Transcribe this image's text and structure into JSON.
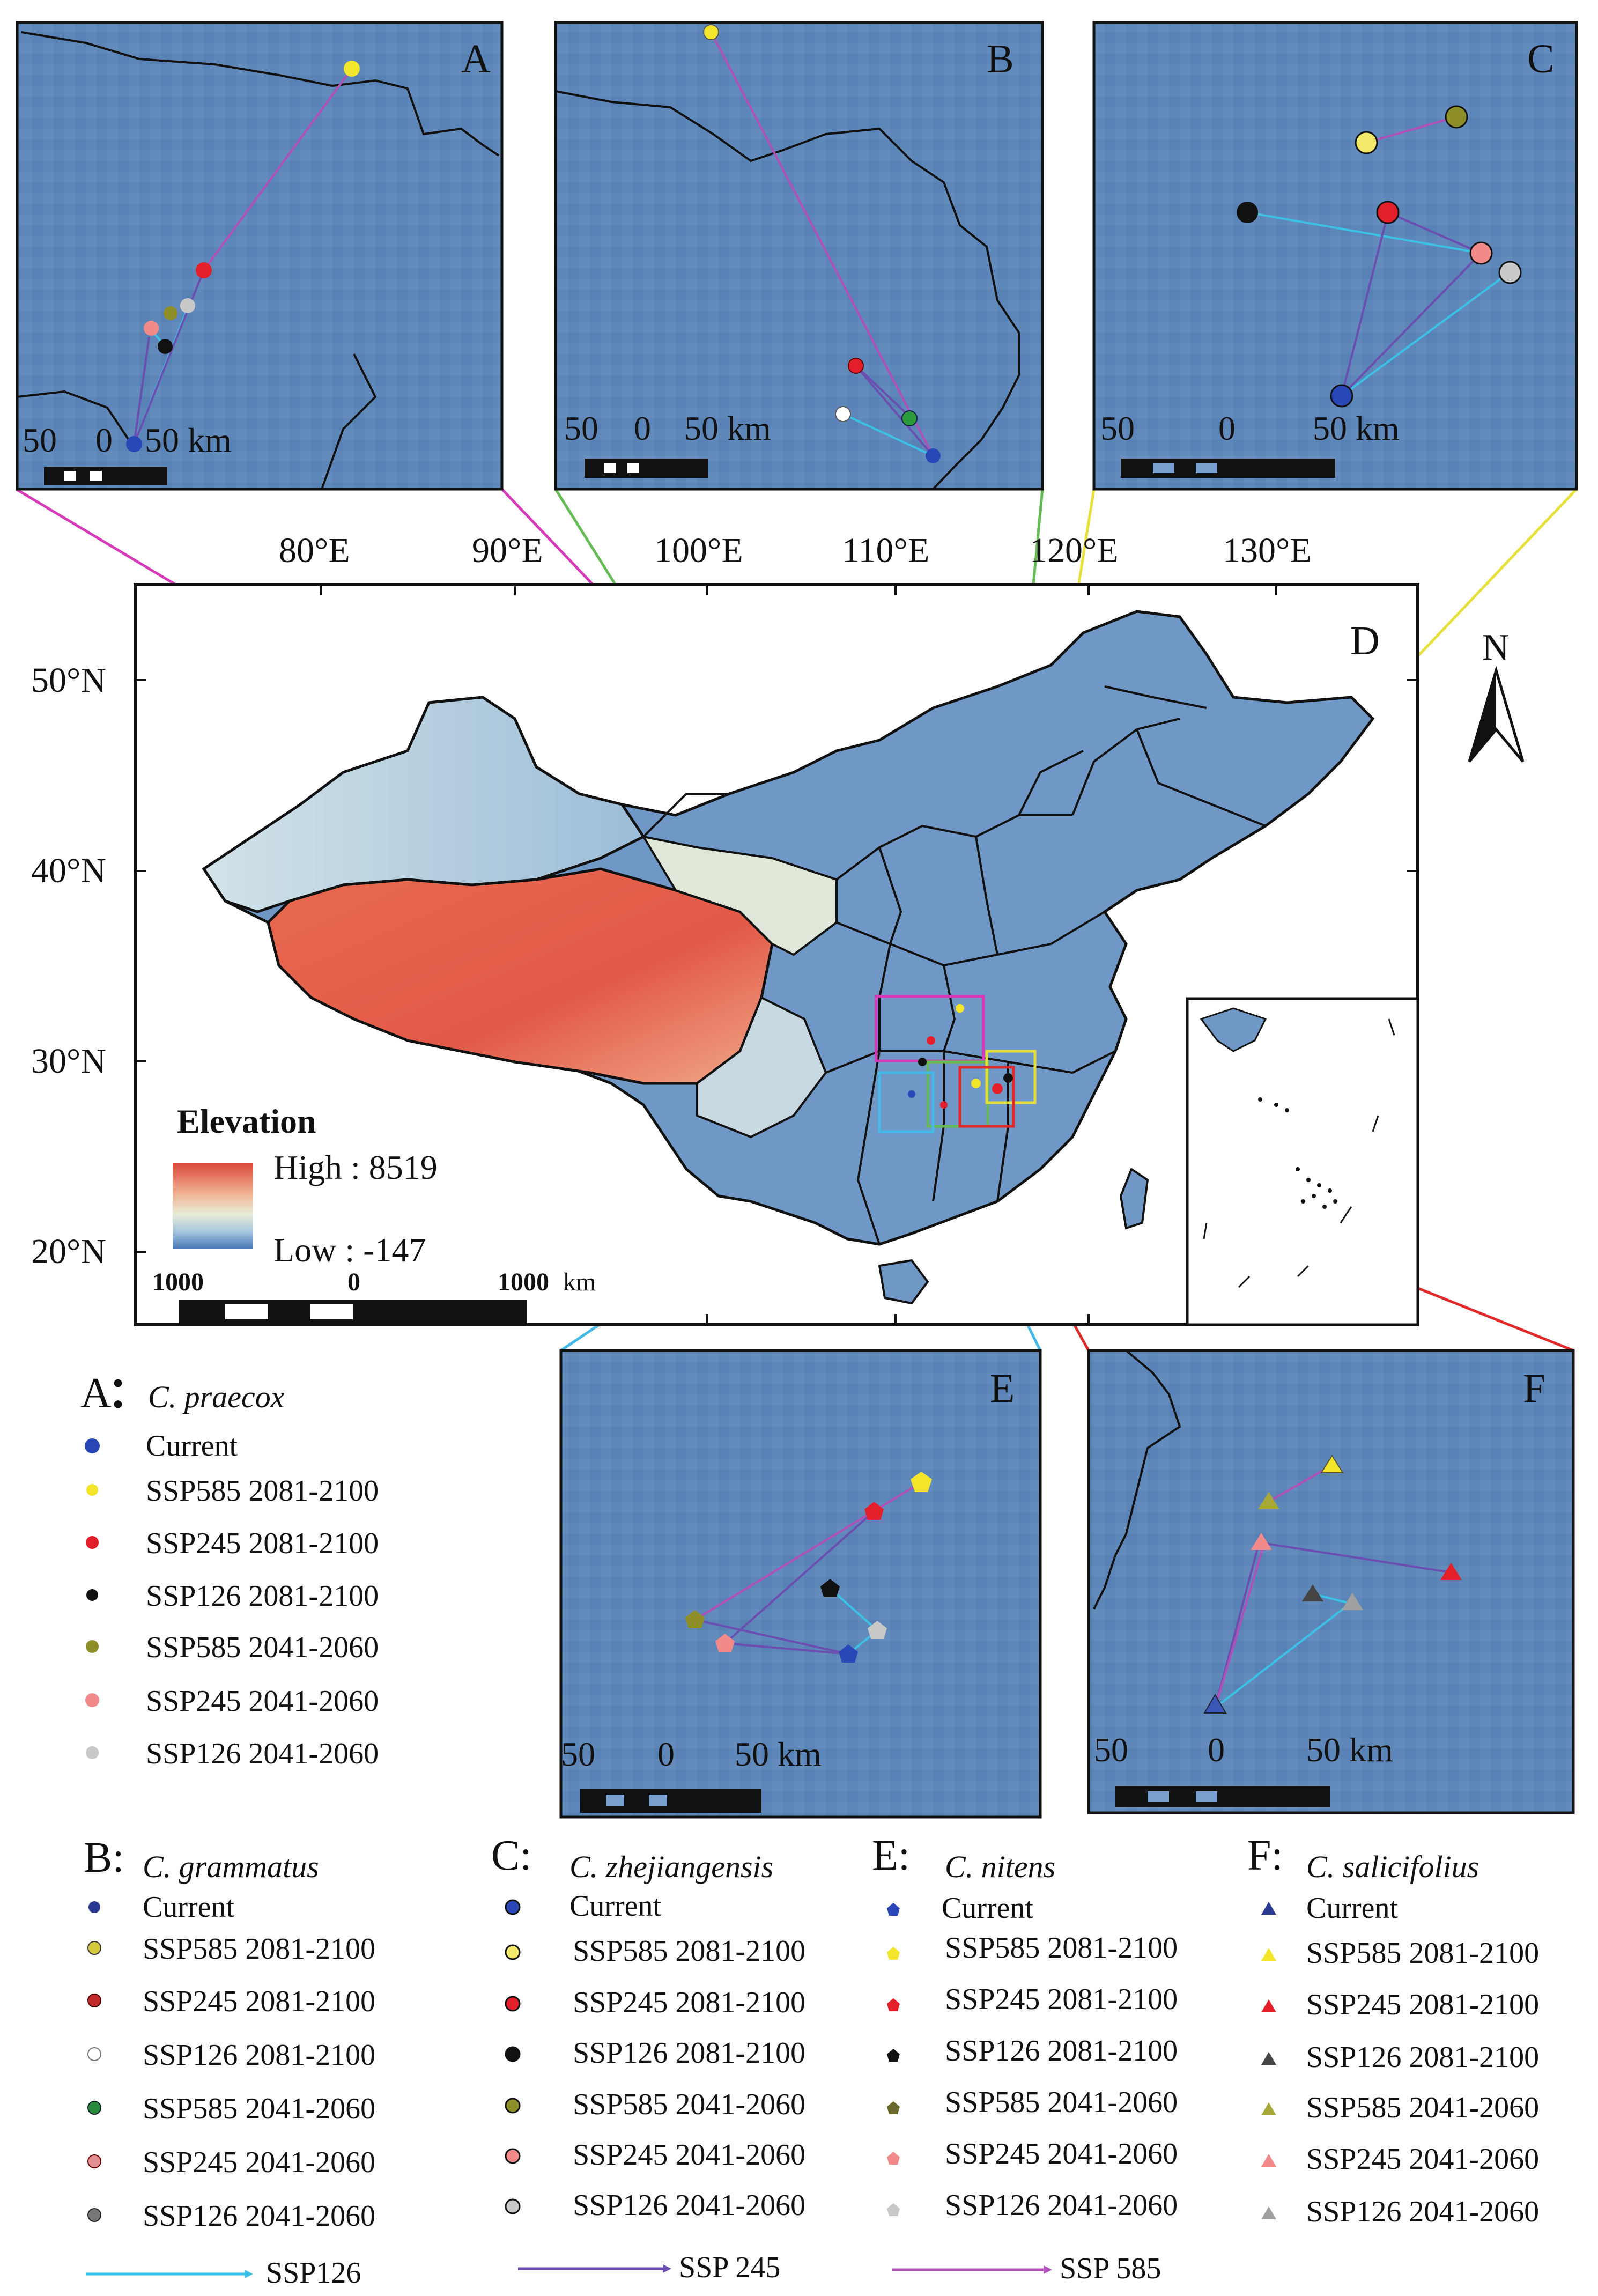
{
  "panels": {
    "A": {
      "letter": "A",
      "scale_left": "50",
      "scale_mid": "0",
      "scale_right": "50 km"
    },
    "B": {
      "letter": "B",
      "scale_left": "50",
      "scale_mid": "0",
      "scale_right": "50 km"
    },
    "C": {
      "letter": "C",
      "scale_left": "50",
      "scale_mid": "0",
      "scale_right": "50 km"
    },
    "D": {
      "letter": "D"
    },
    "E": {
      "letter": "E",
      "scale_left": "50",
      "scale_mid": "0",
      "scale_right": "50 km"
    },
    "F": {
      "letter": "F",
      "scale_left": "50",
      "scale_mid": "0",
      "scale_right": "50 km"
    }
  },
  "main_map": {
    "lon_ticks": [
      "80°E",
      "90°E",
      "100°E",
      "110°E",
      "120°E",
      "130°E"
    ],
    "lat_ticks": [
      "50°N",
      "40°N",
      "30°N",
      "20°N"
    ],
    "north_label": "N",
    "elevation_title": "Elevation",
    "elevation_high": "High : 8519",
    "elevation_low": "Low : -147",
    "scale_left": "1000",
    "scale_mid": "0",
    "scale_right": "1000",
    "scale_unit": "km"
  },
  "colors": {
    "current_blue": "#2a47b8",
    "ssp585_2081": "#f2e52a",
    "ssp245_2081": "#e3202a",
    "ssp126_2081": "#111111",
    "ssp585_2041": "#8f8f2a",
    "ssp245_2041": "#f28a8a",
    "ssp126_2041": "#c8c8c8",
    "line_ssp126": "#3cc0e6",
    "line_ssp245": "#6a4fb0",
    "line_ssp585": "#b050b8",
    "map_blue": "#5d87b8",
    "connector_A": "#d63ab8",
    "connector_B": "#66bb55",
    "connector_C": "#e8e03a",
    "connector_E": "#44b8e6",
    "connector_F": "#e02a2a"
  },
  "legend_A": {
    "prefix": "A",
    "colon": "：",
    "species": "C. praecox",
    "items": [
      "Current",
      "SSP585 2081-2100",
      "SSP245 2081-2100",
      "SSP126 2081-2100",
      "SSP585 2041-2060",
      "SSP245 2041-2060",
      "SSP126 2041-2060"
    ]
  },
  "legend_B": {
    "prefix": "B:",
    "species": "C. grammatus",
    "items": [
      "Current",
      "SSP585 2081-2100",
      "SSP245 2081-2100",
      "SSP126 2081-2100",
      "SSP585 2041-2060",
      "SSP245 2041-2060",
      "SSP126 2041-2060"
    ]
  },
  "legend_C": {
    "prefix": "C:",
    "species": "C. zhejiangensis",
    "items": [
      "Current",
      "SSP585 2081-2100",
      "SSP245 2081-2100",
      "SSP126 2081-2100",
      "SSP585 2041-2060",
      "SSP245 2041-2060",
      "SSP126 2041-2060"
    ]
  },
  "legend_E": {
    "prefix": "E:",
    "species": "C. nitens",
    "items": [
      "Current",
      "SSP585 2081-2100",
      "SSP245 2081-2100",
      "SSP126 2081-2100",
      "SSP585 2041-2060",
      "SSP245 2041-2060",
      "SSP126 2041-2060"
    ]
  },
  "legend_F": {
    "prefix": "F:",
    "species": "C. salicifolius",
    "items": [
      "Current",
      "SSP585 2081-2100",
      "SSP245 2081-2100",
      "SSP126 2081-2100",
      "SSP585 2041-2060",
      "SSP245 2041-2060",
      "SSP126 2041-2060"
    ]
  },
  "line_legend": [
    "SSP126",
    "SSP 245",
    "SSP 585"
  ]
}
